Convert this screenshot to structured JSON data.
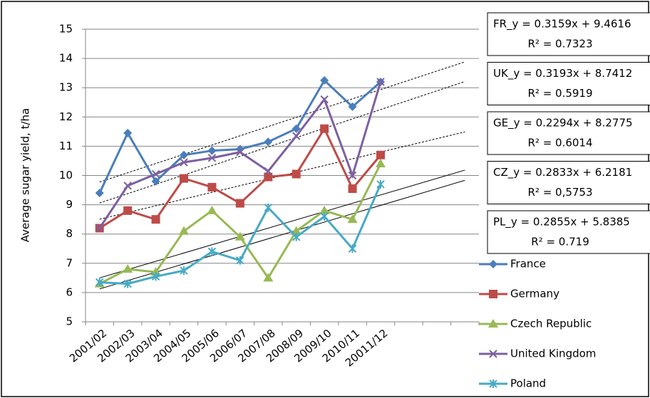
{
  "chart_data": {
    "type": "line",
    "y_label": "Average sugar yield, t/ha",
    "categories": [
      "2001/02",
      "2002/03",
      "2003/04",
      "2004/05",
      "2005/06",
      "2006/07",
      "2007/08",
      "2008/09",
      "2009/10",
      "2010/11",
      "20011/12",
      null,
      null,
      null
    ],
    "ylim": [
      5,
      15
    ],
    "yticks": [
      5,
      6,
      7,
      8,
      9,
      10,
      11,
      12,
      13,
      14,
      15
    ],
    "grid": true,
    "legend": "right",
    "series": [
      {
        "name": "France",
        "color": "#4a7ebb",
        "marker": "diamond",
        "values": [
          9.4,
          11.45,
          9.8,
          10.7,
          10.85,
          10.9,
          11.15,
          11.6,
          13.25,
          12.35,
          13.2,
          null,
          null,
          null
        ],
        "trendline": {
          "equation": "FR_y = 0.3159x + 9.4616",
          "r_squared": "R² = 0.7323",
          "slope": 0.3159,
          "intercept": 9.4616,
          "style": "dotted"
        }
      },
      {
        "name": "Germany",
        "color": "#be4b48",
        "marker": "square",
        "values": [
          8.2,
          8.8,
          8.5,
          9.9,
          9.6,
          9.05,
          9.95,
          10.05,
          11.6,
          9.55,
          10.7,
          null,
          null,
          null
        ],
        "trendline": {
          "equation": "GE_y = 0.2294x + 8.2775",
          "r_squared": "R² = 0.6014",
          "slope": 0.2294,
          "intercept": 8.2775,
          "style": "dotted"
        }
      },
      {
        "name": "Czech Republic",
        "color": "#98b954",
        "marker": "triangle",
        "values": [
          6.3,
          6.8,
          6.7,
          8.1,
          8.8,
          7.9,
          6.5,
          8.1,
          8.8,
          8.5,
          10.4,
          null,
          null,
          null
        ],
        "trendline": {
          "equation": "CZ_y = 0.2833x + 6.2181",
          "r_squared": "R² = 0,5753",
          "slope": 0.2833,
          "intercept": 6.2181,
          "style": "solid"
        }
      },
      {
        "name": "United Kingdom",
        "color": "#7d60a0",
        "marker": "x",
        "values": [
          8.2,
          9.65,
          10.05,
          10.45,
          10.6,
          10.8,
          10.15,
          11.35,
          12.6,
          10.0,
          13.2,
          null,
          null,
          null
        ],
        "trendline": {
          "equation": "UK_y = 0.3193x + 8.7412",
          "r_squared": "R² = 0.5919",
          "slope": 0.3193,
          "intercept": 8.7412,
          "style": "dotted"
        }
      },
      {
        "name": "Poland",
        "color": "#46aac5",
        "marker": "star",
        "values": [
          6.35,
          6.3,
          6.55,
          6.75,
          7.4,
          7.1,
          8.9,
          7.9,
          8.6,
          7.5,
          9.7,
          null,
          null,
          null
        ],
        "trendline": {
          "equation": "PL_y = 0.2855x + 5.8385",
          "r_squared": "R² = 0.719",
          "slope": 0.2855,
          "intercept": 5.8385,
          "style": "solid"
        }
      }
    ]
  }
}
